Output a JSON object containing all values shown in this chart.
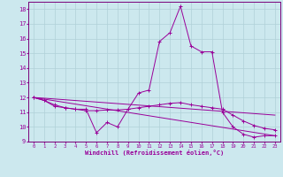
{
  "xlabel": "Windchill (Refroidissement éolien,°C)",
  "background_color": "#cce8ee",
  "grid_color": "#b0d0d8",
  "line_color": "#990099",
  "spine_color": "#7a007a",
  "xlim": [
    -0.5,
    23.5
  ],
  "ylim": [
    9,
    18.5
  ],
  "yticks": [
    9,
    10,
    11,
    12,
    13,
    14,
    15,
    16,
    17,
    18
  ],
  "xticks": [
    0,
    1,
    2,
    3,
    4,
    5,
    6,
    7,
    8,
    9,
    10,
    11,
    12,
    13,
    14,
    15,
    16,
    17,
    18,
    19,
    20,
    21,
    22,
    23
  ],
  "series": [
    {
      "x": [
        0,
        1,
        2,
        3,
        4,
        5,
        6,
        7,
        8,
        9,
        10,
        11,
        12,
        13,
        14,
        15,
        16,
        17,
        18,
        19,
        20,
        21,
        22,
        23
      ],
      "y": [
        12.0,
        11.8,
        11.4,
        11.3,
        11.2,
        11.2,
        9.6,
        10.3,
        10.0,
        11.2,
        12.3,
        12.5,
        15.8,
        16.4,
        18.2,
        15.5,
        15.1,
        15.1,
        11.0,
        10.0,
        9.5,
        9.3,
        9.4,
        9.4
      ],
      "marker": true
    },
    {
      "x": [
        0,
        1,
        2,
        3,
        4,
        5,
        6,
        7,
        8,
        9,
        10,
        11,
        12,
        13,
        14,
        15,
        16,
        17,
        18,
        19,
        20,
        21,
        22,
        23
      ],
      "y": [
        12.0,
        11.8,
        11.5,
        11.3,
        11.2,
        11.1,
        11.1,
        11.15,
        11.15,
        11.2,
        11.3,
        11.4,
        11.5,
        11.6,
        11.65,
        11.5,
        11.4,
        11.3,
        11.2,
        10.8,
        10.4,
        10.1,
        9.9,
        9.8
      ],
      "marker": true
    },
    {
      "x": [
        0,
        23
      ],
      "y": [
        12.0,
        9.4
      ],
      "marker": false
    },
    {
      "x": [
        0,
        23
      ],
      "y": [
        12.0,
        10.8
      ],
      "marker": false
    }
  ]
}
